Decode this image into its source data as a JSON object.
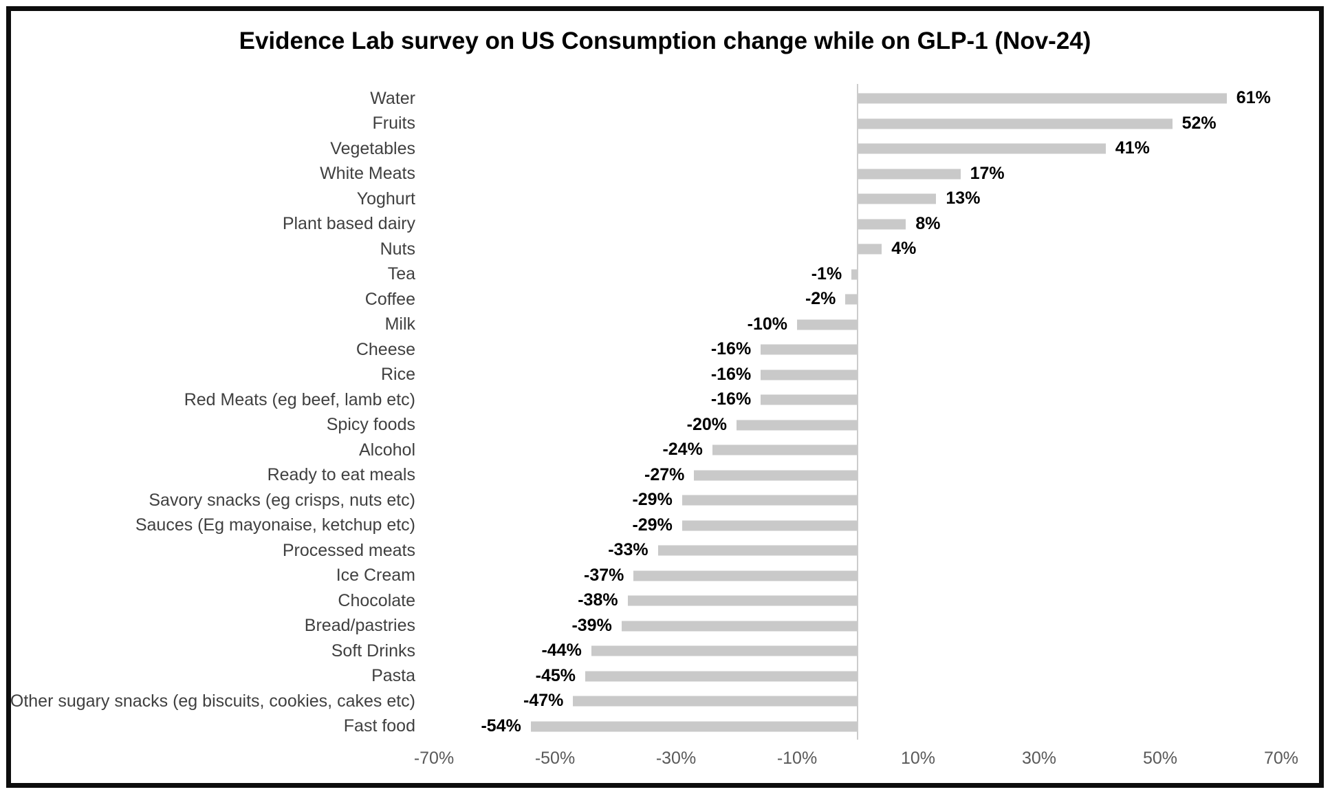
{
  "title": "Evidence Lab survey on US Consumption change while on GLP-1 (Nov-24)",
  "chart_data": {
    "type": "bar",
    "orientation": "horizontal",
    "title": "Evidence Lab survey on US Consumption change while on GLP-1 (Nov-24)",
    "categories": [
      "Water",
      "Fruits",
      "Vegetables",
      "White Meats",
      "Yoghurt",
      "Plant based dairy",
      "Nuts",
      "Tea",
      "Coffee",
      "Milk",
      "Cheese",
      "Rice",
      "Red Meats (eg beef, lamb etc)",
      "Spicy foods",
      "Alcohol",
      "Ready to eat meals",
      "Savory snacks (eg crisps, nuts etc)",
      "Sauces (Eg mayonaise, ketchup etc)",
      "Processed meats",
      "Ice Cream",
      "Chocolate",
      "Bread/pastries",
      "Soft Drinks",
      "Pasta",
      "Other sugary snacks (eg biscuits, cookies, cakes etc)",
      "Fast food"
    ],
    "values": [
      61,
      52,
      41,
      17,
      13,
      8,
      4,
      -1,
      -2,
      -10,
      -16,
      -16,
      -16,
      -20,
      -24,
      -27,
      -29,
      -29,
      -33,
      -37,
      -38,
      -39,
      -44,
      -45,
      -47,
      -54
    ],
    "value_labels": [
      "61%",
      "52%",
      "41%",
      "17%",
      "13%",
      "8%",
      "4%",
      "-1%",
      "-2%",
      "-10%",
      "-16%",
      "-16%",
      "-16%",
      "-20%",
      "-24%",
      "-27%",
      "-29%",
      "-29%",
      "-33%",
      "-37%",
      "-38%",
      "-39%",
      "-44%",
      "-45%",
      "-47%",
      "-54%"
    ],
    "xlabel": "",
    "ylabel": "",
    "xlim": [
      -70,
      70
    ],
    "x_tick_labels": [
      "-70%",
      "-50%",
      "-30%",
      "-10%",
      "10%",
      "30%",
      "50%",
      "70%"
    ],
    "x_tick_values": [
      -70,
      -50,
      -30,
      -10,
      10,
      30,
      50,
      70
    ],
    "bar_color": "#c9c9c9",
    "axis_line_color": "#cccccc",
    "grid": false,
    "legend": false
  }
}
